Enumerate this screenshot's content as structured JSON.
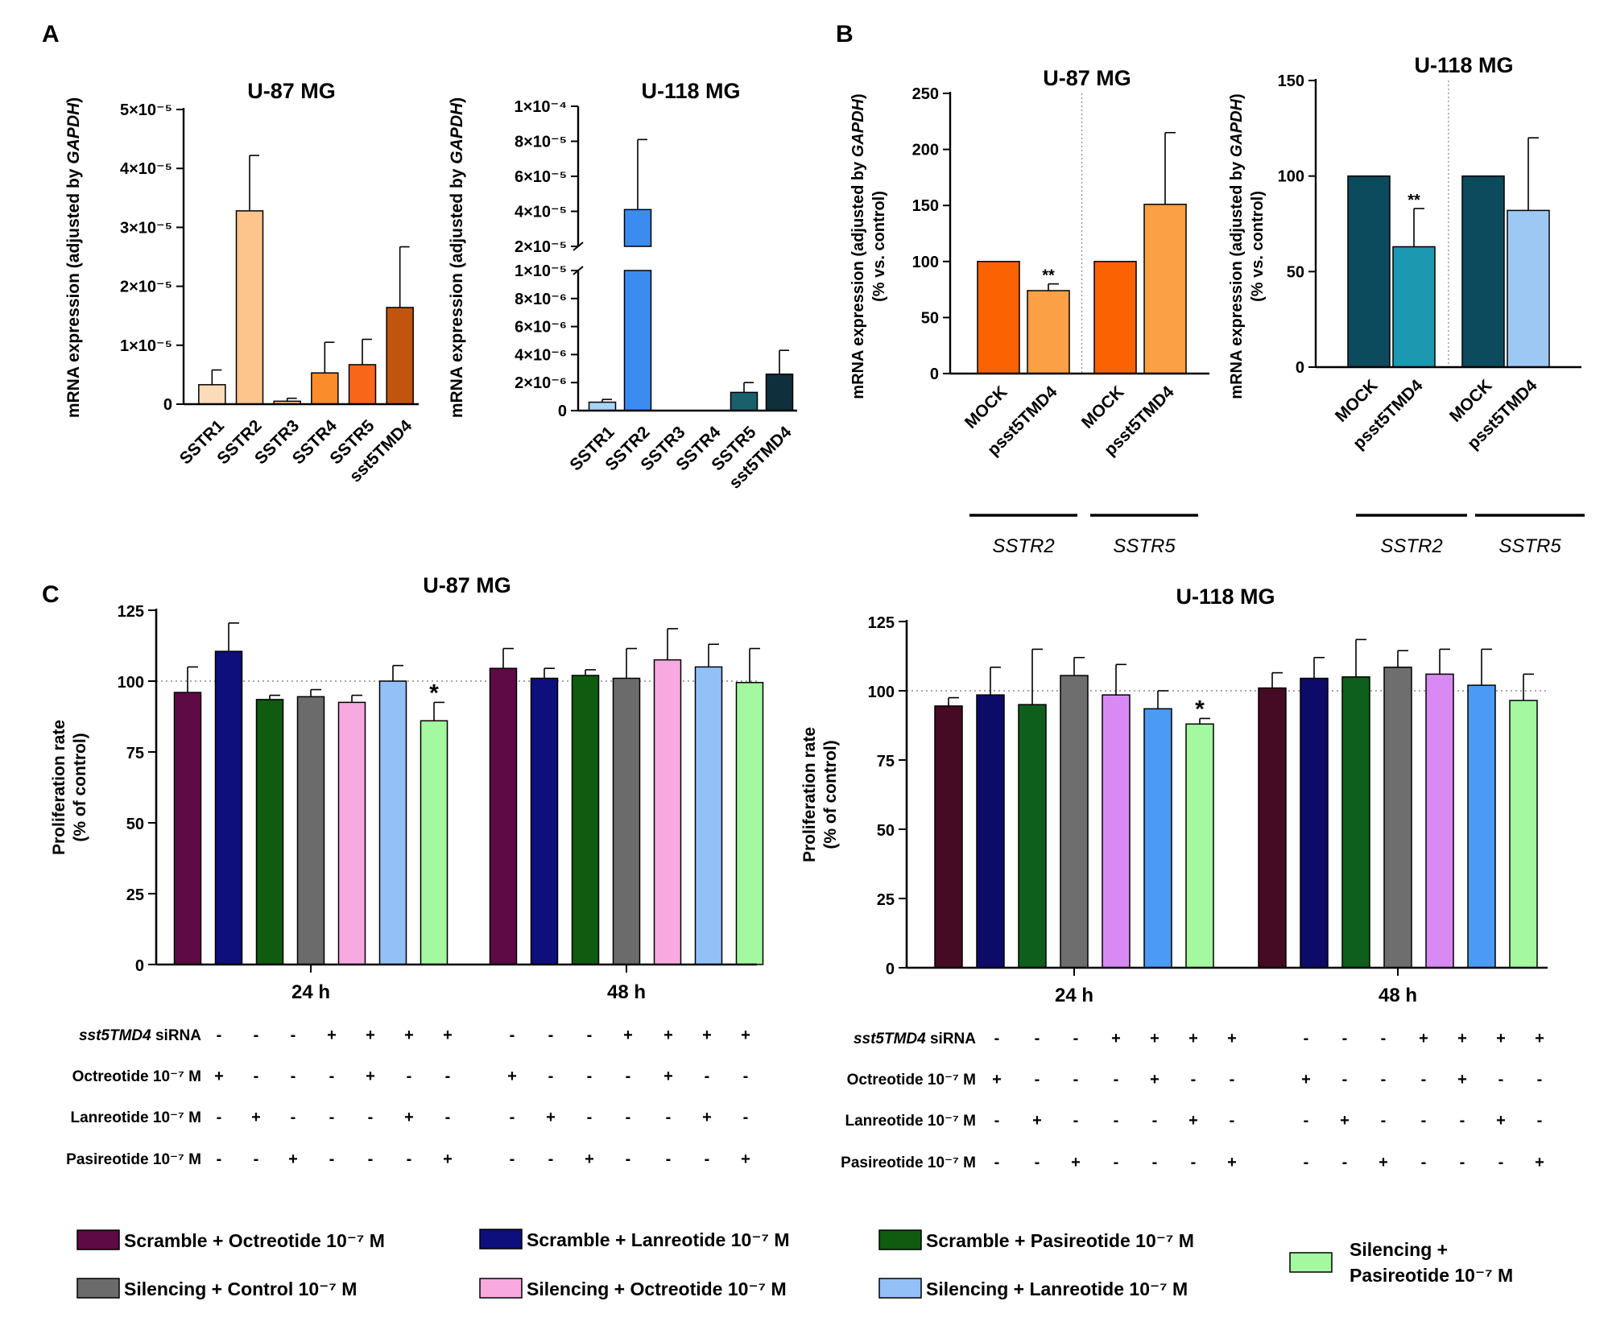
{
  "panel_letters": [
    "A",
    "B",
    "C"
  ],
  "chart_data": [
    {
      "id": "A1",
      "type": "bar",
      "title": "U-87 MG",
      "ylabel": "mRNA expression (adjusted by GAPDH)",
      "ylabel_plain": "mRNA expression (adjusted by ",
      "ylabel_italic": "GAPDH",
      "ylabel_close": ")",
      "ylim": [
        0,
        5e-05
      ],
      "yticks": [
        {
          "v": 0,
          "t": "0"
        },
        {
          "v": 1e-05,
          "t": "1×10⁻⁵"
        },
        {
          "v": 2e-05,
          "t": "2×10⁻⁵"
        },
        {
          "v": 3e-05,
          "t": "3×10⁻⁵"
        },
        {
          "v": 4e-05,
          "t": "4×10⁻⁵"
        },
        {
          "v": 5e-05,
          "t": "5×10⁻⁵"
        }
      ],
      "categories": [
        "SSTR1",
        "SSTR2",
        "SSTR3",
        "SSTR4",
        "SSTR5",
        "sst5TMD4"
      ],
      "values": [
        3.3e-06,
        3.28e-05,
        5e-07,
        5.3e-06,
        6.7e-06,
        1.64e-05
      ],
      "errors": [
        2.5e-06,
        9.4e-06,
        5e-07,
        5.2e-06,
        4.3e-06,
        1.03e-05
      ],
      "colors": [
        "#fcdcb8",
        "#fdc48b",
        "#fdc48b",
        "#fb8c2c",
        "#f8661a",
        "#c1550e"
      ]
    },
    {
      "id": "A2",
      "type": "bar",
      "title": "U-118 MG",
      "ylabel": "mRNA expression (adjusted by GAPDH)",
      "ylabel_plain": "mRNA expression (adjusted by ",
      "ylabel_italic": "GAPDH",
      "ylabel_close": ")",
      "axis_break": {
        "lower_range": [
          0,
          1e-05
        ],
        "upper_range": [
          2e-05,
          0.0001
        ]
      },
      "yticks_lower": [
        {
          "v": 0,
          "t": "0"
        },
        {
          "v": 2e-06,
          "t": "2×10⁻⁶"
        },
        {
          "v": 4e-06,
          "t": "4×10⁻⁶"
        },
        {
          "v": 6e-06,
          "t": "6×10⁻⁶"
        },
        {
          "v": 8e-06,
          "t": "8×10⁻⁶"
        },
        {
          "v": 1e-05,
          "t": "1×10⁻⁵"
        }
      ],
      "yticks_upper": [
        {
          "v": 2e-05,
          "t": "2×10⁻⁵"
        },
        {
          "v": 4e-05,
          "t": "4×10⁻⁵"
        },
        {
          "v": 6e-05,
          "t": "6×10⁻⁵"
        },
        {
          "v": 8e-05,
          "t": "8×10⁻⁵"
        },
        {
          "v": 0.0001,
          "t": "1×10⁻⁴"
        }
      ],
      "categories": [
        "SSTR1",
        "SSTR2",
        "SSTR3",
        "SSTR4",
        "SSTR5",
        "sst5TMD4"
      ],
      "values": [
        6e-07,
        4.1e-05,
        0,
        0,
        1.3e-06,
        2.6e-06
      ],
      "errors": [
        2e-07,
        4e-05,
        0,
        0,
        7e-07,
        1.7e-06
      ],
      "colors": [
        "#a9d4f8",
        "#3a8cf0",
        "#3a8cf0",
        "#3a8cf0",
        "#1a5f6c",
        "#0f2f3c"
      ]
    },
    {
      "id": "B1",
      "type": "bar",
      "title": "U-87 MG",
      "ylabel_line1_plain": "mRNA expression (adjusted by ",
      "ylabel_line1_italic": "GAPDH",
      "ylabel_line1_close": ")",
      "ylabel_line2": "(% vs. control)",
      "ylim": [
        0,
        250
      ],
      "yticks": [
        {
          "v": 0,
          "t": "0"
        },
        {
          "v": 50,
          "t": "50"
        },
        {
          "v": 100,
          "t": "100"
        },
        {
          "v": 150,
          "t": "150"
        },
        {
          "v": 200,
          "t": "200"
        },
        {
          "v": 250,
          "t": "250"
        }
      ],
      "categories": [
        "MOCK",
        "psst5TMD4",
        "MOCK",
        "psst5TMD4"
      ],
      "groups": [
        "SSTR2",
        "SSTR5"
      ],
      "values": [
        100,
        74,
        100,
        151
      ],
      "errors": [
        0,
        6,
        0,
        64
      ],
      "colors": [
        "#fb6202",
        "#fba044",
        "#fb6202",
        "#fba044"
      ],
      "annotations": [
        {
          "index": 1,
          "text": "**"
        }
      ]
    },
    {
      "id": "B2",
      "type": "bar",
      "title": "U-118 MG",
      "ylabel_line1_plain": "mRNA expression (adjusted by ",
      "ylabel_line1_italic": "GAPDH",
      "ylabel_line1_close": ")",
      "ylabel_line2": "(% vs. control)",
      "ylim": [
        0,
        150
      ],
      "yticks": [
        {
          "v": 0,
          "t": "0"
        },
        {
          "v": 50,
          "t": "50"
        },
        {
          "v": 100,
          "t": "100"
        },
        {
          "v": 150,
          "t": "150"
        }
      ],
      "categories": [
        "MOCK",
        "psst5TMD4",
        "MOCK",
        "psst5TMD4"
      ],
      "groups": [
        "SSTR2",
        "SSTR5"
      ],
      "values": [
        100,
        63,
        100,
        82
      ],
      "errors": [
        0,
        20,
        0,
        38
      ],
      "colors": [
        "#0c4a5e",
        "#1c98b0",
        "#0c4a5e",
        "#9ec8f4"
      ],
      "annotations": [
        {
          "index": 1,
          "text": "**"
        }
      ]
    },
    {
      "id": "C1",
      "type": "bar",
      "title": "U-87 MG",
      "ylabel_line1": "Proliferation rate",
      "ylabel_line2": "(% of control)",
      "ylim": [
        0,
        125
      ],
      "reference_line": 100,
      "yticks": [
        {
          "v": 0,
          "t": "0"
        },
        {
          "v": 25,
          "t": "25"
        },
        {
          "v": 50,
          "t": "50"
        },
        {
          "v": 75,
          "t": "75"
        },
        {
          "v": 100,
          "t": "100"
        },
        {
          "v": 125,
          "t": "125"
        }
      ],
      "groups": [
        "24 h",
        "48 h"
      ],
      "values_24h": [
        96,
        110.5,
        93.5,
        94.5,
        92.5,
        100,
        86
      ],
      "errors_24h": [
        9,
        10,
        1.5,
        2.5,
        2.5,
        5.5,
        6.5
      ],
      "values_48h": [
        104.5,
        101,
        102,
        101,
        107.5,
        105,
        99.5
      ],
      "errors_48h": [
        7,
        3.5,
        2,
        10.5,
        11,
        8,
        12
      ],
      "colors": [
        "#5e0a45",
        "#0e0e7c",
        "#0f5b0f",
        "#6b6b6b",
        "#f8a9e0",
        "#94c0f8",
        "#a4f8a0"
      ],
      "annotations": [
        {
          "group": 0,
          "index": 6,
          "text": "*"
        }
      ]
    },
    {
      "id": "C2",
      "type": "bar",
      "title": "U-118 MG",
      "ylabel_line1": "Proliferation rate",
      "ylabel_line2": "(% of control)",
      "ylim": [
        0,
        125
      ],
      "reference_line": 100,
      "yticks": [
        {
          "v": 0,
          "t": "0"
        },
        {
          "v": 25,
          "t": "25"
        },
        {
          "v": 50,
          "t": "50"
        },
        {
          "v": 75,
          "t": "75"
        },
        {
          "v": 100,
          "t": "100"
        },
        {
          "v": 125,
          "t": "125"
        }
      ],
      "groups": [
        "24 h",
        "48 h"
      ],
      "values_24h": [
        94.5,
        98.5,
        95,
        105.5,
        98.5,
        93.5,
        88
      ],
      "errors_24h": [
        3,
        10,
        20,
        6.5,
        11,
        6.5,
        2
      ],
      "values_48h": [
        101,
        104.5,
        105,
        108.5,
        106,
        102,
        96.5
      ],
      "errors_48h": [
        5.5,
        7.5,
        13.5,
        6,
        9,
        13,
        9.5
      ],
      "colors": [
        "#450a24",
        "#0c0c68",
        "#0f5f1c",
        "#6e6e6e",
        "#d989f4",
        "#4b9af3",
        "#a4f8a0"
      ],
      "annotations": [
        {
          "group": 0,
          "index": 6,
          "text": "*"
        }
      ]
    }
  ],
  "treatment_table": {
    "rows": [
      {
        "label_italic": "sst5TMD4",
        "label_plain": " siRNA",
        "signs": [
          "-",
          "-",
          "-",
          "+",
          "+",
          "+",
          "+",
          "-",
          "-",
          "-",
          "+",
          "+",
          "+",
          "+"
        ]
      },
      {
        "label_plain": "Octreotide 10⁻⁷ M",
        "signs": [
          "+",
          "-",
          "-",
          "-",
          "+",
          "-",
          "-",
          "+",
          "-",
          "-",
          "-",
          "+",
          "-",
          "-"
        ]
      },
      {
        "label_plain": "Lanreotide 10⁻⁷ M",
        "signs": [
          "-",
          "+",
          "-",
          "-",
          "-",
          "+",
          "-",
          "-",
          "+",
          "-",
          "-",
          "-",
          "+",
          "-"
        ]
      },
      {
        "label_plain": "Pasireotide 10⁻⁷ M",
        "signs": [
          "-",
          "-",
          "+",
          "-",
          "-",
          "-",
          "+",
          "-",
          "-",
          "+",
          "-",
          "-",
          "-",
          "+"
        ]
      }
    ]
  },
  "legend": {
    "items": [
      {
        "label": "Scramble + Octreotide 10⁻⁷ M",
        "color": "#5e0a45"
      },
      {
        "label": "Scramble + Lanreotide 10⁻⁷ M",
        "color": "#0e0e7c"
      },
      {
        "label": "Scramble + Pasireotide 10⁻⁷ M",
        "color": "#0f5b0f"
      },
      {
        "label": "Silencing + Control 10⁻⁷ M",
        "color": "#6b6b6b"
      },
      {
        "label": "Silencing + Octreotide 10⁻⁷ M",
        "color": "#f8a9e0"
      },
      {
        "label": "Silencing + Lanreotide 10⁻⁷ M",
        "color": "#94c0f8"
      }
    ],
    "last_item": {
      "label_line1": "Silencing +",
      "label_line2": "Pasireotide 10⁻⁷ M",
      "color": "#a4f8a0"
    }
  }
}
